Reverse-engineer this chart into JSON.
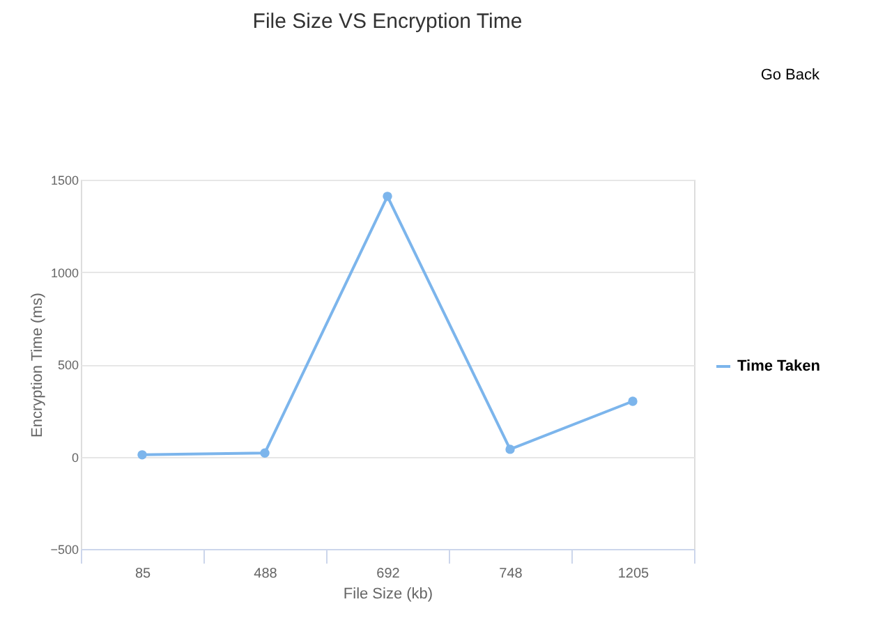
{
  "chart_data": {
    "type": "line",
    "title": "File Size VS Encryption Time",
    "xlabel": "File Size (kb)",
    "ylabel": "Encryption Time (ms)",
    "categories": [
      "85",
      "488",
      "692",
      "748",
      "1205"
    ],
    "series": [
      {
        "name": "Time Taken",
        "color": "#7cb5ec",
        "values": [
          10,
          20,
          1410,
          40,
          300
        ]
      }
    ],
    "ylim": [
      -500,
      1500
    ],
    "yticks": [
      -500,
      0,
      500,
      1000,
      1500
    ],
    "grid": "y",
    "legend": "right",
    "marker": "circle",
    "line_style": "solid",
    "annotations": [
      "Go Back"
    ]
  }
}
